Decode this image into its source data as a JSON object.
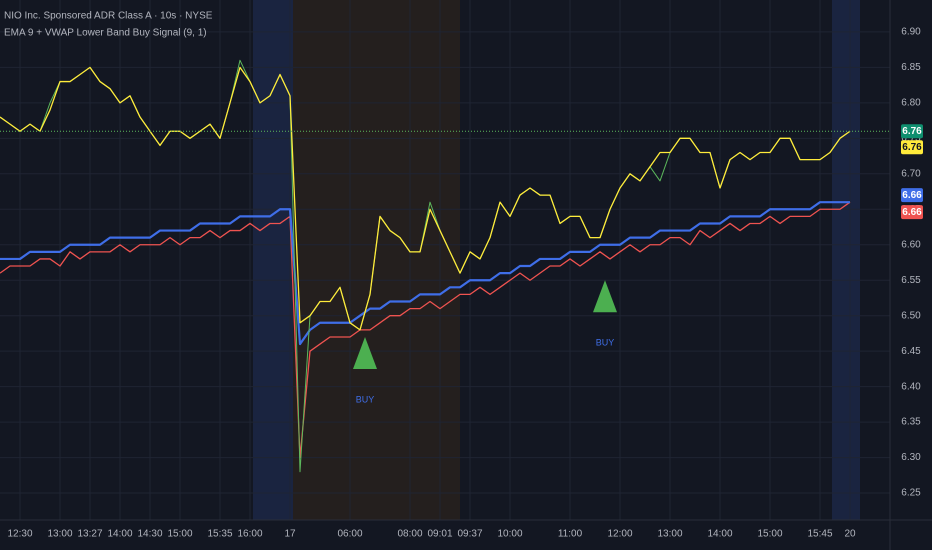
{
  "chart_data": {
    "type": "line",
    "title": "NIO Inc. Sponsored ADR Class A · 10s · NYSE",
    "subtitle": "EMA 9 + VWAP Lower Band Buy Signal (9, 1)",
    "categories": [
      null,
      null,
      "12:30",
      null,
      null,
      null,
      "13:00",
      null,
      null,
      "13:27",
      null,
      null,
      "14:00",
      null,
      null,
      "14:30",
      null,
      null,
      "15:00",
      null,
      null,
      null,
      "15:35",
      null,
      null,
      "16:00",
      null,
      null,
      null,
      "17",
      null,
      null,
      null,
      null,
      null,
      "06:00",
      null,
      null,
      null,
      null,
      null,
      "08:00",
      null,
      null,
      "09:01",
      null,
      null,
      "09:37",
      null,
      null,
      null,
      "10:00",
      null,
      null,
      null,
      null,
      null,
      "11:00",
      null,
      null,
      null,
      null,
      "12:00",
      null,
      null,
      null,
      null,
      "13:00",
      null,
      null,
      null,
      null,
      "14:00",
      null,
      null,
      null,
      null,
      "15:00",
      null,
      null,
      null,
      null,
      "15:45",
      null,
      null,
      "20"
    ],
    "ylim": [
      6.212,
      6.945
    ],
    "yticks": [
      {
        "value": 6.25,
        "label": "6.25"
      },
      {
        "value": 6.3,
        "label": "6.30"
      },
      {
        "value": 6.35,
        "label": "6.35"
      },
      {
        "value": 6.4,
        "label": "6.40"
      },
      {
        "value": 6.45,
        "label": "6.45"
      },
      {
        "value": 6.5,
        "label": "6.50"
      },
      {
        "value": 6.55,
        "label": "6.55"
      },
      {
        "value": 6.6,
        "label": "6.60"
      },
      {
        "value": 6.65,
        "label": "6.65"
      },
      {
        "value": 6.7,
        "label": "6.70"
      },
      {
        "value": 6.75,
        "label": "6.75"
      },
      {
        "value": 6.8,
        "label": "6.80"
      },
      {
        "value": 6.85,
        "label": "6.85"
      },
      {
        "value": 6.9,
        "label": "6.90"
      }
    ],
    "grid": true,
    "series": [
      {
        "color": "#5cb85c",
        "values": [
          6.78,
          6.77,
          6.76,
          6.77,
          6.76,
          6.8,
          6.83,
          6.83,
          6.84,
          6.85,
          6.83,
          6.82,
          6.8,
          6.81,
          6.78,
          6.76,
          6.74,
          6.76,
          6.76,
          6.75,
          6.76,
          6.77,
          6.75,
          6.8,
          6.86,
          6.83,
          6.8,
          6.81,
          6.84,
          6.81,
          6.28,
          6.5,
          6.52,
          6.52,
          6.54,
          6.49,
          6.48,
          6.53,
          6.64,
          6.62,
          6.61,
          6.59,
          6.59,
          6.66,
          6.62,
          6.59,
          6.56,
          6.59,
          6.58,
          6.61,
          6.66,
          6.64,
          6.67,
          6.68,
          6.67,
          6.67,
          6.63,
          6.64,
          6.64,
          6.61,
          6.61,
          6.65,
          6.68,
          6.7,
          6.69,
          6.71,
          6.69,
          6.73,
          6.75,
          6.75,
          6.73,
          6.73,
          6.68,
          6.72,
          6.73,
          6.72,
          6.73,
          6.73,
          6.75,
          6.75,
          6.72,
          6.72,
          6.72,
          6.73,
          6.75,
          6.76
        ]
      },
      {
        "color": "#ffeb3b",
        "values": [
          6.78,
          6.77,
          6.76,
          6.77,
          6.76,
          6.79,
          6.83,
          6.83,
          6.84,
          6.85,
          6.83,
          6.82,
          6.8,
          6.81,
          6.78,
          6.76,
          6.74,
          6.76,
          6.76,
          6.75,
          6.76,
          6.77,
          6.75,
          6.8,
          6.85,
          6.83,
          6.8,
          6.81,
          6.84,
          6.81,
          6.49,
          6.5,
          6.52,
          6.52,
          6.54,
          6.49,
          6.48,
          6.53,
          6.64,
          6.62,
          6.61,
          6.59,
          6.59,
          6.65,
          6.62,
          6.59,
          6.56,
          6.59,
          6.58,
          6.61,
          6.66,
          6.64,
          6.67,
          6.68,
          6.67,
          6.67,
          6.63,
          6.64,
          6.64,
          6.61,
          6.61,
          6.65,
          6.68,
          6.7,
          6.69,
          6.71,
          6.73,
          6.73,
          6.75,
          6.75,
          6.73,
          6.73,
          6.68,
          6.72,
          6.73,
          6.72,
          6.73,
          6.73,
          6.75,
          6.75,
          6.72,
          6.72,
          6.72,
          6.73,
          6.75,
          6.76
        ]
      },
      {
        "color": "#3f6ee8",
        "values": [
          6.58,
          6.58,
          6.58,
          6.59,
          6.59,
          6.59,
          6.59,
          6.6,
          6.6,
          6.6,
          6.6,
          6.61,
          6.61,
          6.61,
          6.61,
          6.61,
          6.62,
          6.62,
          6.62,
          6.62,
          6.63,
          6.63,
          6.63,
          6.63,
          6.64,
          6.64,
          6.64,
          6.64,
          6.65,
          6.65,
          6.46,
          6.48,
          6.49,
          6.49,
          6.49,
          6.49,
          6.5,
          6.51,
          6.51,
          6.52,
          6.52,
          6.52,
          6.53,
          6.53,
          6.53,
          6.54,
          6.54,
          6.55,
          6.55,
          6.55,
          6.56,
          6.56,
          6.57,
          6.57,
          6.58,
          6.58,
          6.58,
          6.59,
          6.59,
          6.59,
          6.6,
          6.6,
          6.6,
          6.61,
          6.61,
          6.61,
          6.62,
          6.62,
          6.62,
          6.62,
          6.63,
          6.63,
          6.63,
          6.64,
          6.64,
          6.64,
          6.64,
          6.65,
          6.65,
          6.65,
          6.65,
          6.65,
          6.66,
          6.66,
          6.66,
          6.66
        ]
      },
      {
        "color": "#ef5350",
        "values": [
          6.56,
          6.57,
          6.57,
          6.57,
          6.58,
          6.58,
          6.57,
          6.59,
          6.58,
          6.59,
          6.59,
          6.59,
          6.6,
          6.59,
          6.6,
          6.6,
          6.6,
          6.61,
          6.6,
          6.61,
          6.61,
          6.62,
          6.61,
          6.62,
          6.62,
          6.63,
          6.62,
          6.63,
          6.63,
          6.64,
          6.3,
          6.45,
          6.46,
          6.47,
          6.47,
          6.47,
          6.48,
          6.48,
          6.49,
          6.5,
          6.5,
          6.51,
          6.51,
          6.52,
          6.51,
          6.52,
          6.53,
          6.53,
          6.54,
          6.53,
          6.54,
          6.55,
          6.56,
          6.55,
          6.56,
          6.57,
          6.57,
          6.58,
          6.57,
          6.58,
          6.59,
          6.58,
          6.59,
          6.6,
          6.59,
          6.6,
          6.6,
          6.61,
          6.61,
          6.6,
          6.62,
          6.61,
          6.62,
          6.63,
          6.62,
          6.63,
          6.63,
          6.64,
          6.63,
          6.64,
          6.64,
          6.64,
          6.65,
          6.65,
          6.65,
          6.66
        ]
      }
    ],
    "buy_signals": {
      "label": "BUY",
      "color": "#4caf50",
      "values": [
        null,
        null,
        null,
        null,
        null,
        null,
        null,
        null,
        null,
        null,
        null,
        null,
        null,
        null,
        null,
        null,
        null,
        null,
        null,
        null,
        null,
        null,
        null,
        null,
        null,
        null,
        null,
        null,
        null,
        null,
        null,
        null,
        null,
        null,
        null,
        null,
        6.47,
        null,
        null,
        null,
        null,
        null,
        null,
        null,
        null,
        null,
        null,
        null,
        null,
        null,
        null,
        null,
        null,
        null,
        null,
        null,
        null,
        null,
        null,
        null,
        6.55,
        null,
        null,
        null,
        null,
        null,
        null,
        null,
        null,
        null,
        null,
        null,
        null,
        null,
        null,
        null,
        null,
        null,
        null,
        null,
        null,
        null,
        null,
        null,
        null,
        null
      ]
    }
  }
}
